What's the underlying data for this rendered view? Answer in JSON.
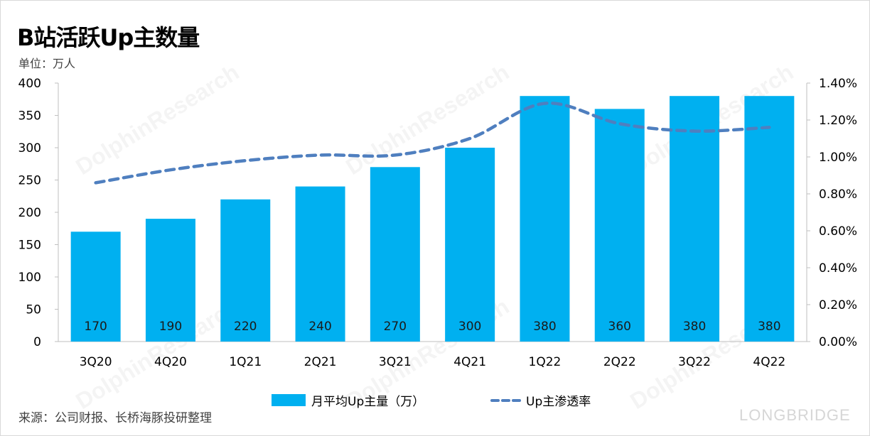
{
  "title": "B站活跃Up主数量",
  "unit": "单位：万人",
  "source": "来源：公司财报、长桥海豚投研整理",
  "brand": "LONGBRIDGE",
  "watermark": "DolphinResearch",
  "colors": {
    "bar": "#00b0f0",
    "line": "#4f7fbf"
  },
  "chart_data": {
    "type": "bar",
    "categories": [
      "3Q20",
      "4Q20",
      "1Q21",
      "2Q21",
      "3Q21",
      "4Q21",
      "1Q22",
      "2Q22",
      "3Q22",
      "4Q22"
    ],
    "series": [
      {
        "name": "月平均Up主量（万）",
        "type": "bar",
        "axis": "left",
        "values": [
          170,
          190,
          220,
          240,
          270,
          300,
          380,
          360,
          380,
          380
        ]
      },
      {
        "name": "Up主渗透率",
        "type": "line",
        "axis": "right",
        "style": "dashed",
        "values": [
          0.0086,
          0.0093,
          0.0098,
          0.0101,
          0.0101,
          0.011,
          0.0129,
          0.0118,
          0.0114,
          0.0116
        ]
      }
    ],
    "ylim_left": [
      0,
      400
    ],
    "yticks_left": [
      "0",
      "50",
      "100",
      "150",
      "200",
      "250",
      "300",
      "350",
      "400"
    ],
    "ylim_right": [
      0,
      0.014
    ],
    "yticks_right": [
      "0.00%",
      "0.20%",
      "0.40%",
      "0.60%",
      "0.80%",
      "1.00%",
      "1.20%",
      "1.40%"
    ],
    "data_labels": [
      "170",
      "190",
      "220",
      "240",
      "270",
      "300",
      "380",
      "360",
      "380",
      "380"
    ],
    "grid": false,
    "legend_position": "bottom"
  }
}
